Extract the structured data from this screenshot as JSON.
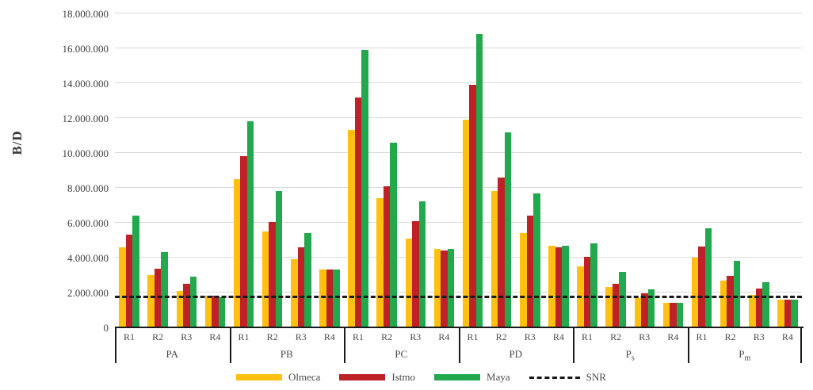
{
  "chart_data": {
    "type": "bar",
    "title": "",
    "xlabel": "",
    "ylabel": "B/D",
    "ylim": [
      0,
      18000000
    ],
    "y_tick_step": 2000000,
    "y_tick_labels": [
      "0",
      "2.000.000",
      "4.000.000",
      "6.000.000",
      "8.000.000",
      "10.000.000",
      "12.000.000",
      "14.000.000",
      "16.000.000",
      "18.000.000"
    ],
    "grid": true,
    "legend_position": "bottom",
    "categories": [
      "R1",
      "R2",
      "R3",
      "R4"
    ],
    "groups": [
      {
        "label": "PA",
        "label_main": "PA",
        "label_sub": ""
      },
      {
        "label": "PB",
        "label_main": "PB",
        "label_sub": ""
      },
      {
        "label": "PC",
        "label_main": "PC",
        "label_sub": ""
      },
      {
        "label": "PD",
        "label_main": "PD",
        "label_sub": ""
      },
      {
        "label": "Ps",
        "label_main": "P",
        "label_sub": "s"
      },
      {
        "label": "Pm",
        "label_main": "P",
        "label_sub": "m"
      }
    ],
    "series": [
      {
        "name": "Olmeca",
        "color": "#FFC010",
        "values": [
          [
            4600000,
            3000000,
            2100000,
            1800000
          ],
          [
            8500000,
            5500000,
            3900000,
            3300000
          ],
          [
            11300000,
            7400000,
            5100000,
            4500000
          ],
          [
            11900000,
            7800000,
            5400000,
            4700000
          ],
          [
            3500000,
            2300000,
            1700000,
            1400000
          ],
          [
            4000000,
            2700000,
            1850000,
            1600000
          ]
        ]
      },
      {
        "name": "Istmo",
        "color": "#BE2126",
        "values": [
          [
            5300000,
            3350000,
            2500000,
            1800000
          ],
          [
            9800000,
            6050000,
            4600000,
            3300000
          ],
          [
            13200000,
            8100000,
            6100000,
            4400000
          ],
          [
            13900000,
            8600000,
            6400000,
            4600000
          ],
          [
            4050000,
            2500000,
            1950000,
            1400000
          ],
          [
            4650000,
            2950000,
            2250000,
            1600000
          ]
        ]
      },
      {
        "name": "Maya",
        "color": "#22A84D",
        "values": [
          [
            6400000,
            4300000,
            2900000,
            1750000
          ],
          [
            11800000,
            7800000,
            5400000,
            3300000
          ],
          [
            15900000,
            10600000,
            7250000,
            4500000
          ],
          [
            16800000,
            11200000,
            7700000,
            4700000
          ],
          [
            4800000,
            3200000,
            2200000,
            1400000
          ],
          [
            5700000,
            3800000,
            2600000,
            1600000
          ]
        ]
      }
    ],
    "reference_line": {
      "name": "SNR",
      "value": 1700000,
      "style": "dashed",
      "color": "#1a1a1a"
    },
    "colors": {
      "gridline": "#d9d9d9",
      "axis": "#1a1a1a",
      "text": "#404040"
    }
  }
}
